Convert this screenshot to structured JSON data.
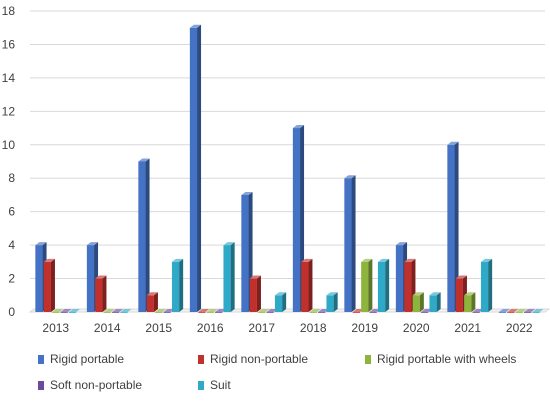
{
  "chart_data": {
    "type": "bar",
    "style": "3d-clustered-column",
    "categories": [
      "2013",
      "2014",
      "2015",
      "2016",
      "2017",
      "2018",
      "2019",
      "2020",
      "2021",
      "2022"
    ],
    "series": [
      {
        "name": "Rigid portable",
        "color": "#4472C4",
        "values": [
          4,
          4,
          9,
          17,
          7,
          11,
          8,
          4,
          10,
          0
        ]
      },
      {
        "name": "Rigid non-portable",
        "color": "#C0312E",
        "values": [
          3,
          2,
          1,
          0,
          2,
          3,
          0,
          3,
          2,
          0
        ]
      },
      {
        "name": "Rigid portable with wheels",
        "color": "#8DB43D",
        "values": [
          0,
          0,
          0,
          0,
          0,
          0,
          3,
          1,
          1,
          0
        ]
      },
      {
        "name": "Soft non-portable",
        "color": "#6B4A9E",
        "values": [
          0,
          0,
          0,
          0,
          0,
          0,
          0,
          0,
          0,
          0
        ]
      },
      {
        "name": "Suit",
        "color": "#2FA9C8",
        "values": [
          0,
          0,
          3,
          4,
          1,
          1,
          3,
          1,
          3,
          0
        ]
      }
    ],
    "y_ticks": [
      "0",
      "2",
      "4",
      "6",
      "8",
      "10",
      "12",
      "14",
      "16",
      "18"
    ],
    "ylim": [
      0,
      18
    ],
    "grid": true,
    "legend_position": "bottom",
    "title": "",
    "xlabel": "",
    "ylabel": ""
  }
}
